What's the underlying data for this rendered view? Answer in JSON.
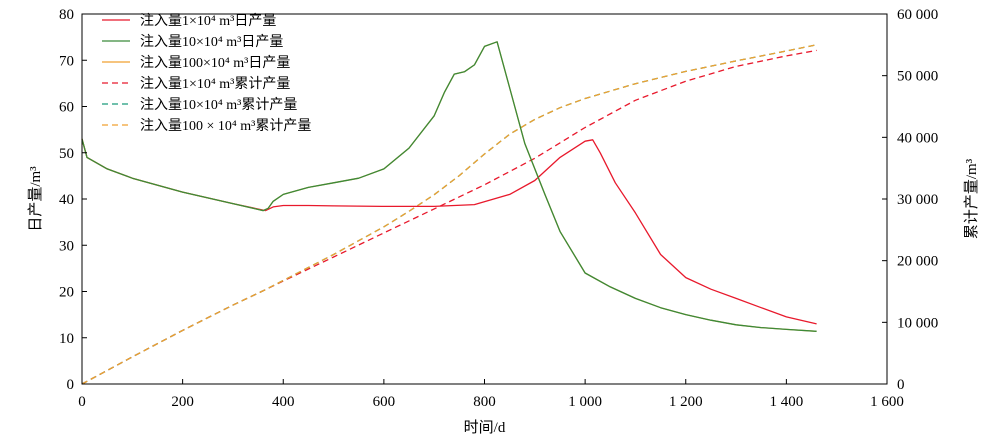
{
  "chart_data": {
    "type": "line",
    "title": "",
    "xlabel": "时间/d",
    "ylabel_left": "日产量/m³",
    "ylabel_right": "累计产量/m³",
    "xlim": [
      0,
      1600
    ],
    "ylim_left": [
      0,
      80
    ],
    "ylim_right": [
      0,
      60000
    ],
    "x_ticks": [
      0,
      200,
      400,
      600,
      800,
      1000,
      1200,
      1400,
      1600
    ],
    "x_tick_labels": [
      "0",
      "200",
      "400",
      "600",
      "800",
      "1 000",
      "1 200",
      "1 400",
      "1 600"
    ],
    "y_left_ticks": [
      0,
      10,
      20,
      30,
      40,
      50,
      60,
      70,
      80
    ],
    "y_left_tick_labels": [
      "0",
      "10",
      "20",
      "30",
      "40",
      "50",
      "60",
      "70",
      "80"
    ],
    "y_right_ticks": [
      0,
      10000,
      20000,
      30000,
      40000,
      50000,
      60000
    ],
    "y_right_tick_labels": [
      "0",
      "10 000",
      "20 000",
      "30 000",
      "40 000",
      "50 000",
      "60 000"
    ],
    "grid": false,
    "legend_position": "top-left",
    "series": [
      {
        "name": "注入量1×10⁴ m³日产量",
        "axis": "left",
        "style": "solid",
        "color": "#e8192c",
        "x": [
          0,
          10,
          50,
          100,
          200,
          300,
          365,
          380,
          400,
          450,
          500,
          600,
          700,
          780,
          850,
          900,
          950,
          1000,
          1015,
          1030,
          1060,
          1100,
          1150,
          1200,
          1250,
          1300,
          1350,
          1400,
          1460
        ],
        "y": [
          53,
          49,
          46.5,
          44.5,
          41.5,
          39,
          37.5,
          38.3,
          38.6,
          38.6,
          38.5,
          38.4,
          38.4,
          38.8,
          41,
          44,
          49,
          52.5,
          52.8,
          50,
          43.5,
          37,
          28,
          23,
          20.5,
          18.5,
          16.5,
          14.5,
          13
        ]
      },
      {
        "name": "注入量10×10⁴ m³日产量",
        "axis": "left",
        "style": "solid",
        "color": "#3a8a3a",
        "x": [
          0,
          10,
          50,
          100,
          200,
          300,
          360,
          370,
          380,
          400,
          450,
          500,
          550,
          600,
          650,
          700,
          720,
          740,
          760,
          780,
          800,
          825,
          850,
          880,
          920,
          950,
          1000,
          1050,
          1100,
          1150,
          1200,
          1250,
          1300,
          1350,
          1400,
          1460
        ],
        "y": [
          53,
          49,
          46.5,
          44.5,
          41.5,
          39,
          37.5,
          38,
          39.5,
          41,
          42.5,
          43.5,
          44.5,
          46.5,
          51,
          58,
          63,
          67,
          67.5,
          69,
          73,
          74,
          64,
          52,
          41,
          33,
          24,
          21,
          18.5,
          16.5,
          15,
          13.8,
          12.8,
          12.2,
          11.8,
          11.4
        ]
      },
      {
        "name": "注入量100×10⁴ m³日产量",
        "axis": "left",
        "style": "solid",
        "color": "#f0a030",
        "x": [
          0,
          10,
          50,
          100,
          200,
          300,
          360,
          370,
          380,
          400,
          450,
          500,
          550,
          600,
          650,
          700,
          720,
          740,
          760,
          780,
          800,
          825,
          850,
          880,
          920,
          950,
          1000,
          1050,
          1100,
          1150,
          1200,
          1250,
          1300,
          1350,
          1400,
          1460
        ],
        "y": [
          53,
          49,
          46.5,
          44.5,
          41.5,
          39,
          37.5,
          38,
          39.5,
          41,
          42.5,
          43.5,
          44.5,
          46.5,
          51,
          58,
          63,
          67,
          67.5,
          69,
          73,
          74,
          64,
          52,
          41,
          33,
          24,
          21,
          18.5,
          16.5,
          15,
          13.8,
          12.8,
          12.2,
          11.8,
          11.4
        ]
      },
      {
        "name": "注入量1×10⁴ m³累计产量",
        "axis": "right",
        "style": "dashed",
        "color": "#e8192c",
        "x": [
          0,
          100,
          200,
          300,
          365,
          400,
          500,
          600,
          700,
          800,
          900,
          1000,
          1100,
          1200,
          1300,
          1400,
          1460
        ],
        "y": [
          0,
          4400,
          8700,
          12800,
          15300,
          16700,
          20600,
          24500,
          28400,
          32300,
          36600,
          41600,
          46000,
          49100,
          51500,
          53200,
          54100
        ]
      },
      {
        "name": "注入量10×10⁴ m³累计产量",
        "axis": "right",
        "style": "dashed",
        "color": "#1a9a7a",
        "x": [
          0,
          100,
          200,
          300,
          365,
          400,
          500,
          600,
          650,
          700,
          750,
          800,
          850,
          900,
          950,
          1000,
          1100,
          1200,
          1300,
          1400,
          1460
        ],
        "y": [
          0,
          4400,
          8700,
          12800,
          15300,
          16800,
          21000,
          25500,
          28000,
          30700,
          33800,
          37300,
          40500,
          42900,
          44800,
          46300,
          48700,
          50700,
          52400,
          54000,
          55000
        ]
      },
      {
        "name": "注入量100 × 10⁴ m³累计产量",
        "axis": "right",
        "style": "dashed",
        "color": "#f0a030",
        "x": [
          0,
          100,
          200,
          300,
          365,
          400,
          500,
          600,
          650,
          700,
          750,
          800,
          850,
          900,
          950,
          1000,
          1100,
          1200,
          1300,
          1400,
          1460
        ],
        "y": [
          0,
          4400,
          8700,
          12800,
          15300,
          16800,
          21000,
          25500,
          28000,
          30700,
          33800,
          37300,
          40500,
          42900,
          44800,
          46300,
          48700,
          50700,
          52400,
          54000,
          55000
        ]
      }
    ]
  }
}
